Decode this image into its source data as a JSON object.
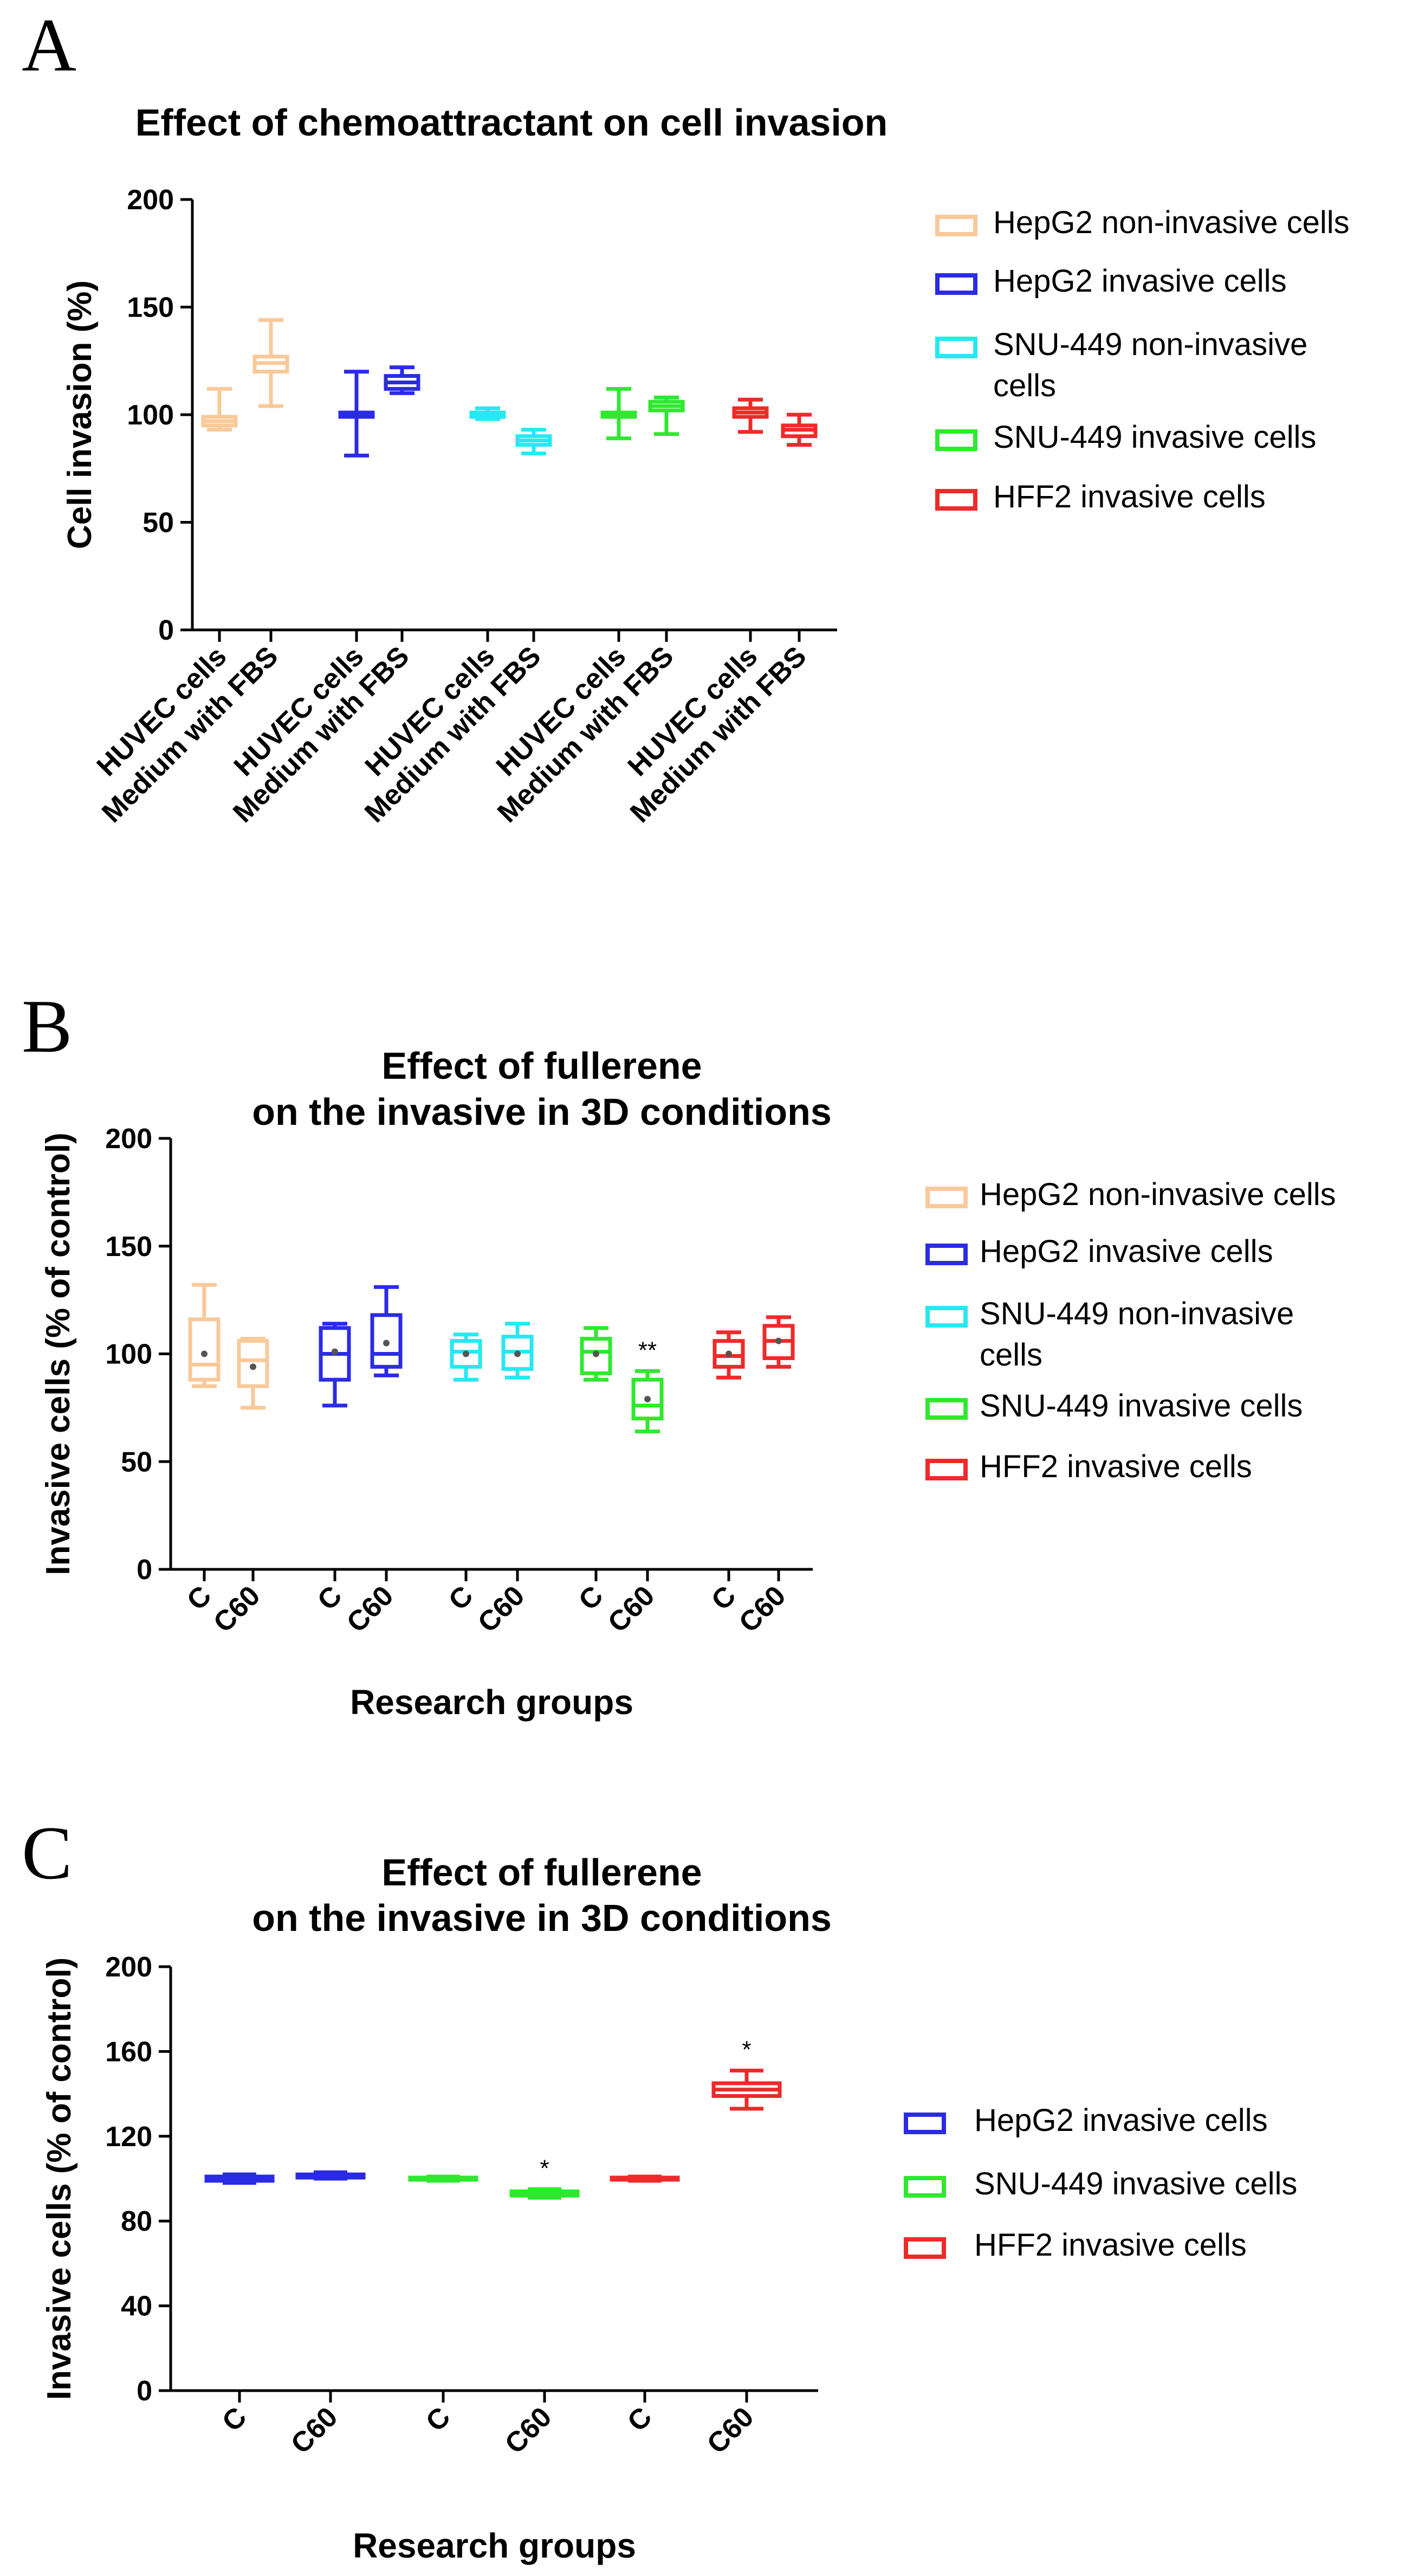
{
  "panels": [
    {
      "letter": "A",
      "title_lines": [
        "Effect of chemoattractant on cell invasion"
      ],
      "ylabel": "Cell invasion (%)",
      "xlabel": "",
      "yticks": [
        "0",
        "50",
        "100",
        "150",
        "200"
      ],
      "legend": [
        {
          "label_lines": [
            "HepG2 non-invasive cells"
          ],
          "color": "#f9c99a"
        },
        {
          "label_lines": [
            "HepG2 invasive cells"
          ],
          "color": "#2b2be6"
        },
        {
          "label_lines": [
            "SNU-449 non-invasive",
            "cells"
          ],
          "color": "#26e8f2"
        },
        {
          "label_lines": [
            "SNU-449 invasive cells"
          ],
          "color": "#2fe82f"
        },
        {
          "label_lines": [
            "HFF2 invasive cells"
          ],
          "color": "#ee2a2a"
        }
      ]
    },
    {
      "letter": "B",
      "title_lines": [
        "Effect of fullerene",
        "on the invasive in 3D conditions"
      ],
      "ylabel": "Invasive cells (% of control)",
      "xlabel": "Research groups",
      "yticks": [
        "0",
        "50",
        "100",
        "150",
        "200"
      ],
      "legend": [
        {
          "label_lines": [
            "HepG2 non-invasive cells"
          ],
          "color": "#f9c99a"
        },
        {
          "label_lines": [
            "HepG2 invasive cells"
          ],
          "color": "#2b2be6"
        },
        {
          "label_lines": [
            "SNU-449 non-invasive",
            "cells"
          ],
          "color": "#26e8f2"
        },
        {
          "label_lines": [
            "SNU-449 invasive cells"
          ],
          "color": "#2fe82f"
        },
        {
          "label_lines": [
            "HFF2 invasive cells"
          ],
          "color": "#ee2a2a"
        }
      ]
    },
    {
      "letter": "C",
      "title_lines": [
        "Effect of fullerene",
        "on the invasive in 3D conditions"
      ],
      "ylabel": "Invasive cells (% of control)",
      "xlabel": "Research groups",
      "yticks": [
        "0",
        "40",
        "80",
        "120",
        "160",
        "200"
      ],
      "legend": [
        {
          "label_lines": [
            "HepG2 invasive cells"
          ],
          "color": "#2b2be6"
        },
        {
          "label_lines": [
            "SNU-449 invasive cells"
          ],
          "color": "#2fe82f"
        },
        {
          "label_lines": [
            "HFF2 invasive cells"
          ],
          "color": "#ee2a2a"
        }
      ]
    }
  ],
  "chart_data": [
    {
      "type": "box",
      "panel": "A",
      "title": "Effect of chemoattractant on cell invasion",
      "xlabel": "",
      "ylabel": "Cell invasion (%)",
      "ylim": [
        0,
        200
      ],
      "categories": [
        "HUVEC cells",
        "Medium with FBS",
        "HUVEC cells",
        "Medium with FBS",
        "HUVEC cells",
        "Medium with FBS",
        "HUVEC cells",
        "Medium with FBS",
        "HUVEC cells",
        "Medium with FBS"
      ],
      "boxes": [
        {
          "series": "HepG2 non-invasive cells",
          "color": "#f9c99a",
          "min": 93,
          "q1": 95,
          "median": 97,
          "q3": 99,
          "max": 112,
          "mean": 97,
          "sig": ""
        },
        {
          "series": "HepG2 non-invasive cells",
          "color": "#f9c99a",
          "min": 104,
          "q1": 120,
          "median": 124,
          "q3": 127,
          "max": 144,
          "mean": 124,
          "sig": ""
        },
        {
          "series": "HepG2 invasive cells",
          "color": "#2b2be6",
          "min": 81,
          "q1": 99,
          "median": 100,
          "q3": 101,
          "max": 120,
          "mean": 100,
          "sig": ""
        },
        {
          "series": "HepG2 invasive cells",
          "color": "#2b2be6",
          "min": 110,
          "q1": 112,
          "median": 115,
          "q3": 118,
          "max": 122,
          "mean": 115,
          "sig": ""
        },
        {
          "series": "SNU-449 non-invasive cells",
          "color": "#26e8f2",
          "min": 98,
          "q1": 99,
          "median": 100,
          "q3": 101,
          "max": 103,
          "mean": 100,
          "sig": ""
        },
        {
          "series": "SNU-449 non-invasive cells",
          "color": "#26e8f2",
          "min": 82,
          "q1": 86,
          "median": 88,
          "q3": 90,
          "max": 93,
          "mean": 88,
          "sig": ""
        },
        {
          "series": "SNU-449 invasive cells",
          "color": "#2fe82f",
          "min": 89,
          "q1": 99,
          "median": 100,
          "q3": 101,
          "max": 112,
          "mean": 100,
          "sig": ""
        },
        {
          "series": "SNU-449 invasive cells",
          "color": "#2fe82f",
          "min": 91,
          "q1": 102,
          "median": 104,
          "q3": 106,
          "max": 108,
          "mean": 104,
          "sig": ""
        },
        {
          "series": "HFF2 invasive cells",
          "color": "#ee2a2a",
          "min": 92,
          "q1": 99,
          "median": 101,
          "q3": 103,
          "max": 107,
          "mean": 101,
          "sig": ""
        },
        {
          "series": "HFF2 invasive cells",
          "color": "#ee2a2a",
          "min": 86,
          "q1": 90,
          "median": 93,
          "q3": 95,
          "max": 100,
          "mean": 93,
          "sig": ""
        }
      ]
    },
    {
      "type": "box",
      "panel": "B",
      "title": "Effect of fullerene on the invasive in 3D conditions",
      "xlabel": "Research groups",
      "ylabel": "Invasive cells (% of control)",
      "ylim": [
        0,
        200
      ],
      "categories": [
        "C",
        "C60",
        "C",
        "C60",
        "C",
        "C60",
        "C",
        "C60",
        "C",
        "C60"
      ],
      "boxes": [
        {
          "series": "HepG2 non-invasive cells",
          "color": "#f9c99a",
          "min": 85,
          "q1": 88,
          "median": 95,
          "q3": 116,
          "max": 132,
          "mean": 100,
          "sig": ""
        },
        {
          "series": "HepG2 non-invasive cells",
          "color": "#f9c99a",
          "min": 75,
          "q1": 85,
          "median": 97,
          "q3": 106,
          "max": 107,
          "mean": 94,
          "sig": ""
        },
        {
          "series": "HepG2 invasive cells",
          "color": "#2b2be6",
          "min": 76,
          "q1": 88,
          "median": 100,
          "q3": 112,
          "max": 114,
          "mean": 101,
          "sig": ""
        },
        {
          "series": "HepG2 invasive cells",
          "color": "#2b2be6",
          "min": 90,
          "q1": 94,
          "median": 100,
          "q3": 118,
          "max": 131,
          "mean": 105,
          "sig": ""
        },
        {
          "series": "SNU-449 non-invasive cells",
          "color": "#26e8f2",
          "min": 88,
          "q1": 94,
          "median": 101,
          "q3": 106,
          "max": 109,
          "mean": 100,
          "sig": ""
        },
        {
          "series": "SNU-449 non-invasive cells",
          "color": "#26e8f2",
          "min": 89,
          "q1": 93,
          "median": 101,
          "q3": 108,
          "max": 114,
          "mean": 100,
          "sig": ""
        },
        {
          "series": "SNU-449 invasive cells",
          "color": "#2fe82f",
          "min": 88,
          "q1": 91,
          "median": 101,
          "q3": 107,
          "max": 112,
          "mean": 100,
          "sig": ""
        },
        {
          "series": "SNU-449 invasive cells",
          "color": "#2fe82f",
          "min": 64,
          "q1": 70,
          "median": 76,
          "q3": 88,
          "max": 92,
          "mean": 79,
          "sig": "**"
        },
        {
          "series": "HFF2 invasive cells",
          "color": "#ee2a2a",
          "min": 89,
          "q1": 94,
          "median": 99,
          "q3": 106,
          "max": 110,
          "mean": 100,
          "sig": ""
        },
        {
          "series": "HFF2 invasive cells",
          "color": "#ee2a2a",
          "min": 94,
          "q1": 98,
          "median": 106,
          "q3": 113,
          "max": 117,
          "mean": 106,
          "sig": ""
        }
      ]
    },
    {
      "type": "box",
      "panel": "C",
      "title": "Effect of fullerene on the invasive in 3D conditions",
      "xlabel": "Research groups",
      "ylabel": "Invasive cells (% of control)",
      "ylim": [
        0,
        200
      ],
      "categories": [
        "C",
        "C60",
        "C",
        "C60",
        "C",
        "C60"
      ],
      "boxes": [
        {
          "series": "HepG2 invasive cells",
          "color": "#2b2be6",
          "min": 98,
          "q1": 99,
          "median": 100,
          "q3": 101,
          "max": 102,
          "mean": 100,
          "sig": ""
        },
        {
          "series": "HepG2 invasive cells",
          "color": "#2b2be6",
          "min": 100,
          "q1": 100.5,
          "median": 101,
          "q3": 102,
          "max": 103,
          "mean": 101,
          "sig": ""
        },
        {
          "series": "SNU-449 invasive cells",
          "color": "#2fe82f",
          "min": 99,
          "q1": 99.5,
          "median": 100,
          "q3": 100.5,
          "max": 101,
          "mean": 100,
          "sig": ""
        },
        {
          "series": "SNU-449 invasive cells",
          "color": "#2fe82f",
          "min": 91,
          "q1": 92,
          "median": 93,
          "q3": 94,
          "max": 95,
          "mean": 93,
          "sig": "*"
        },
        {
          "series": "HFF2 invasive cells",
          "color": "#ee2a2a",
          "min": 99,
          "q1": 99.5,
          "median": 100,
          "q3": 100.5,
          "max": 101,
          "mean": 100,
          "sig": ""
        },
        {
          "series": "HFF2 invasive cells",
          "color": "#ee2a2a",
          "min": 133,
          "q1": 139,
          "median": 142,
          "q3": 145,
          "max": 151,
          "mean": 142,
          "sig": "*"
        }
      ]
    }
  ]
}
